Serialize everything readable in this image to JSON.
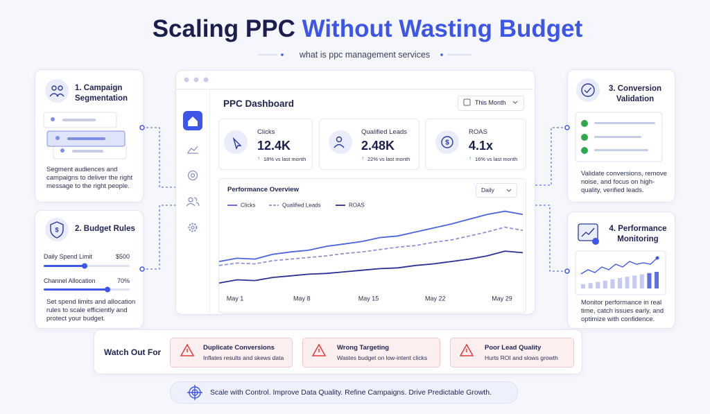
{
  "header": {
    "title_part1": "Scaling PPC",
    "title_part2": "Without Wasting Budget",
    "subtitle": "what is ppc management services"
  },
  "cards": [
    {
      "title": "1. Campaign Segmentation",
      "description": "Segment audiences and campaigns to deliver the right message to the right people."
    },
    {
      "title": "2. Budget Rules",
      "controls": [
        {
          "label": "Daily Spend Limit",
          "value": "$500"
        },
        {
          "label": "Channel Allocation",
          "value": "70%"
        }
      ],
      "description": "Set spend limits and allocation rules to scale efficiently and protect your budget."
    },
    {
      "title": "3. Conversion Validation",
      "description": "Validate conversions, remove noise, and focus on high-quality, verified leads."
    },
    {
      "title": "4. Performance Monitoring",
      "description": "Monitor performance in real time, catch issues early, and optimize with confidence."
    }
  ],
  "dashboard": {
    "title": "PPC Dashboard",
    "period": "This Month",
    "stats": [
      {
        "label": "Clicks",
        "value": "12.4K",
        "change": "18% vs last month"
      },
      {
        "label": "Qualified Leads",
        "value": "2.48K",
        "change": "22% vs last month"
      },
      {
        "label": "ROAS",
        "value": "4.1x",
        "change": "16% vs last month"
      }
    ],
    "chart": {
      "type": "line",
      "title": "Performance Overview",
      "interval": "Daily",
      "x_labels": [
        "May 1",
        "May 8",
        "May 15",
        "May 22",
        "May 29"
      ],
      "ylim": [
        0,
        100
      ],
      "series": [
        {
          "name": "Clicks",
          "color": "#4a63e0",
          "dashed": false,
          "values": [
            33,
            37,
            36,
            42,
            45,
            47,
            52,
            55,
            58,
            63,
            65,
            70,
            75,
            80,
            86,
            92,
            96,
            92
          ]
        },
        {
          "name": "Qualified Leads",
          "color": "#8e91d8",
          "dashed": true,
          "values": [
            28,
            31,
            30,
            34,
            36,
            38,
            40,
            43,
            45,
            48,
            51,
            53,
            57,
            60,
            65,
            70,
            76,
            72
          ]
        },
        {
          "name": "ROAS",
          "color": "#2c2f95",
          "dashed": false,
          "values": [
            6,
            10,
            9,
            13,
            15,
            17,
            18,
            20,
            22,
            24,
            25,
            28,
            30,
            33,
            36,
            40,
            46,
            44
          ]
        }
      ]
    }
  },
  "watch_out": {
    "title": "Watch Out For",
    "items": [
      {
        "title": "Duplicate Conversions",
        "description": "Inflates results and skews data"
      },
      {
        "title": "Wrong Targeting",
        "description": "Wastes budget on low-intent clicks"
      },
      {
        "title": "Poor Lead Quality",
        "description": "Hurts ROI and slows growth"
      }
    ]
  },
  "footer": "Scale with Control. Improve Data Quality. Refine Campaigns. Drive Predictable Growth."
}
